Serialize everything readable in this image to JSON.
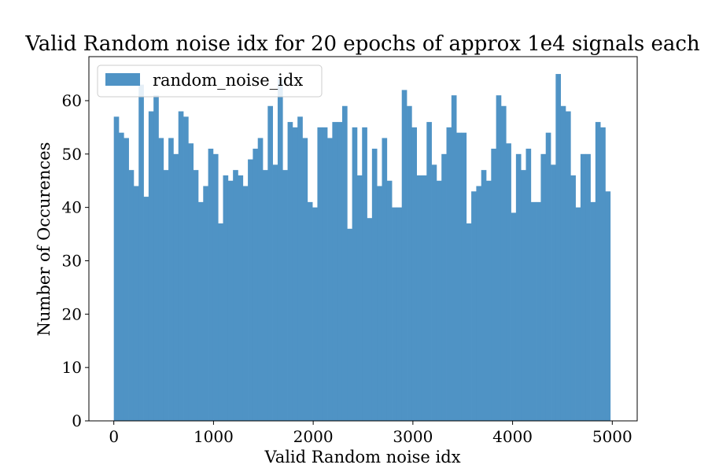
{
  "chart_data": {
    "type": "bar",
    "title": "Valid Random noise idx for 20 epochs of approx 1e4 signals each",
    "xlabel": "Valid Random noise idx",
    "ylabel": "Number of Occurences",
    "xlim": [
      -250,
      5250
    ],
    "ylim": [
      0,
      68.25
    ],
    "xticks": [
      0,
      1000,
      2000,
      3000,
      4000,
      5000
    ],
    "xtick_labels": [
      "0",
      "1000",
      "2000",
      "3000",
      "4000",
      "5000"
    ],
    "yticks": [
      0,
      10,
      20,
      30,
      40,
      50,
      60
    ],
    "ytick_labels": [
      "0",
      "10",
      "20",
      "30",
      "40",
      "50",
      "60"
    ],
    "bin_start": 0,
    "bin_width": 49.8,
    "legend_position": "upper-left",
    "grid": false,
    "series": [
      {
        "name": "random_noise_idx",
        "color": "#4f93c5",
        "values": [
          57,
          54,
          53,
          47,
          44,
          63,
          42,
          58,
          61,
          53,
          47,
          53,
          50,
          58,
          57,
          52,
          47,
          41,
          44,
          51,
          50,
          37,
          46,
          45,
          47,
          46,
          44,
          49,
          51,
          53,
          47,
          59,
          48,
          64,
          47,
          56,
          55,
          57,
          53,
          41,
          40,
          55,
          55,
          53,
          56,
          56,
          59,
          36,
          55,
          46,
          55,
          38,
          51,
          44,
          53,
          45,
          40,
          40,
          62,
          59,
          55,
          46,
          46,
          56,
          48,
          45,
          50,
          55,
          61,
          54,
          54,
          37,
          43,
          44,
          47,
          45,
          51,
          61,
          59,
          52,
          39,
          50,
          47,
          51,
          41,
          41,
          50,
          54,
          48,
          65,
          59,
          58,
          46,
          40,
          50,
          50,
          41,
          56,
          55,
          43
        ]
      }
    ]
  }
}
